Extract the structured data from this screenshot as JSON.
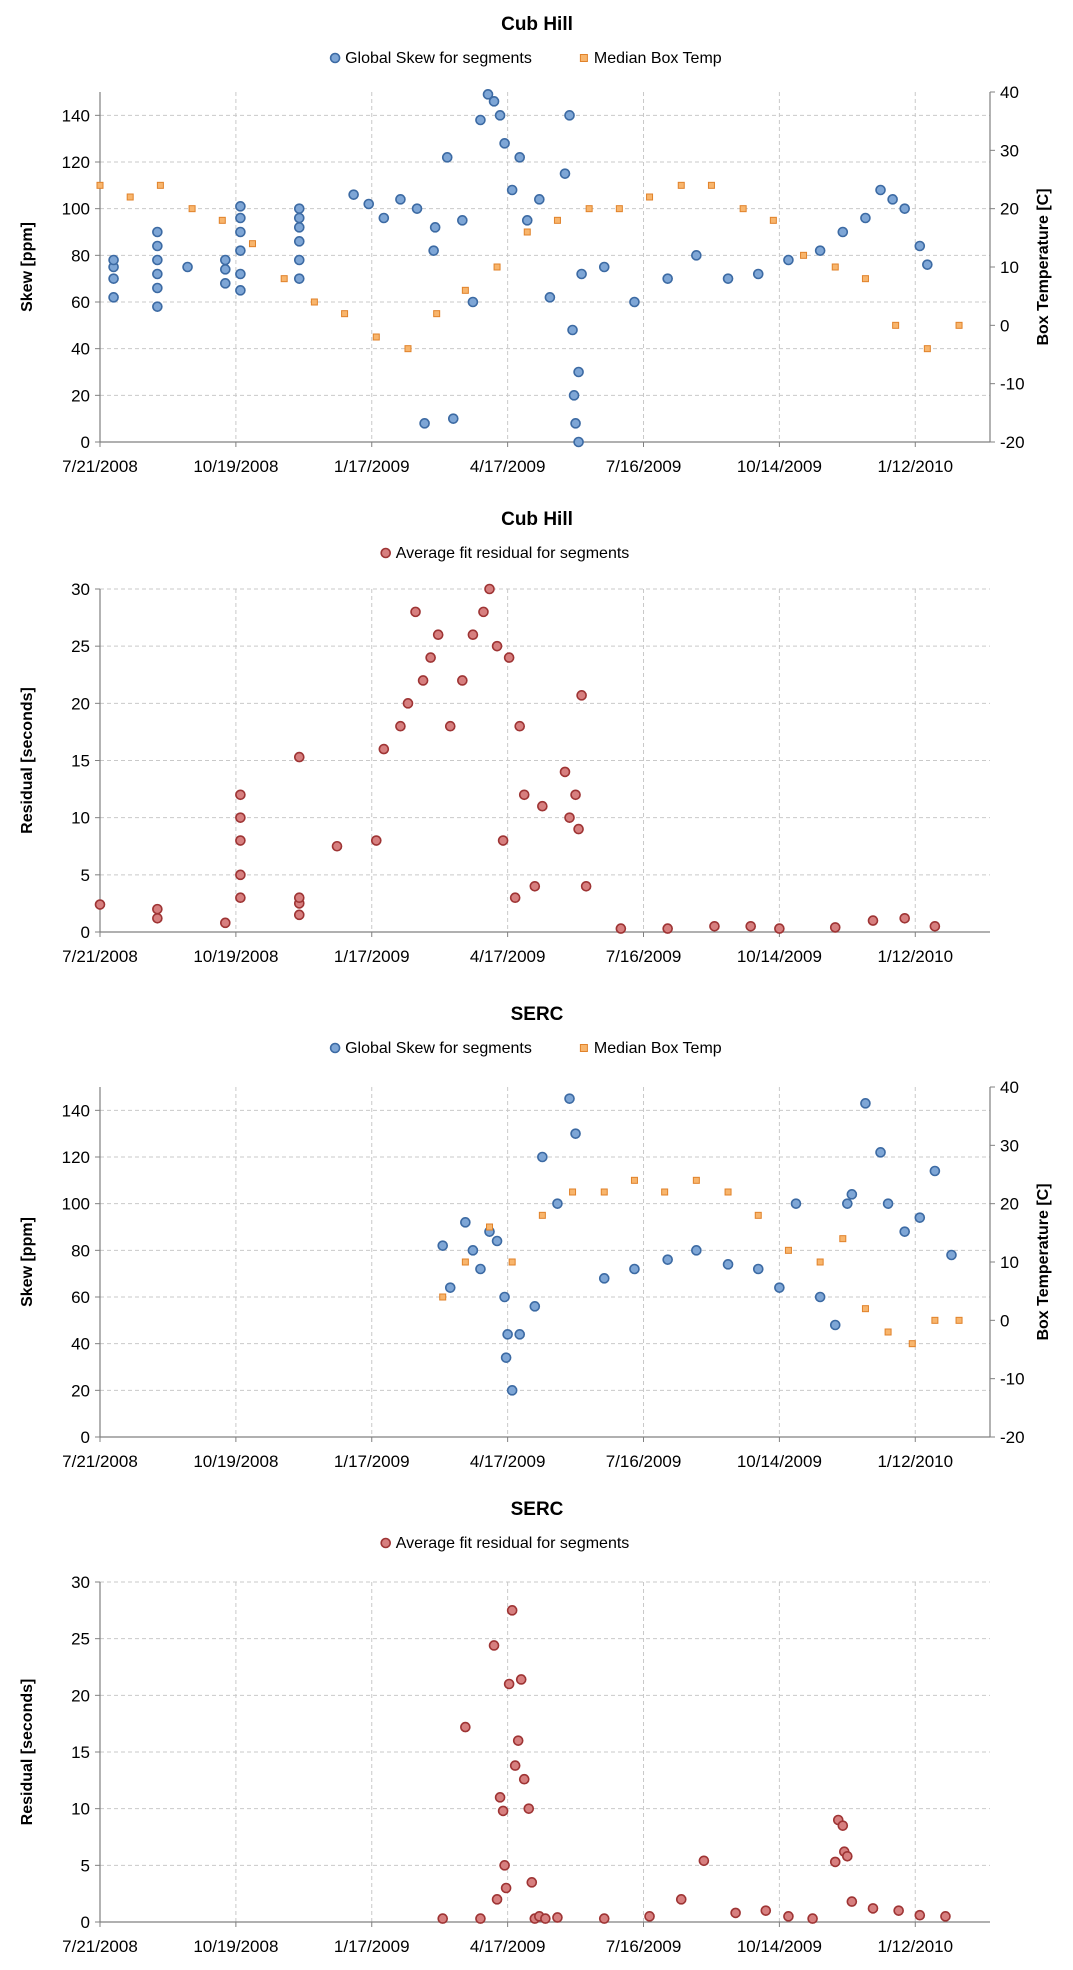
{
  "colors": {
    "skew_fill": "#7ea6d6",
    "skew_stroke": "#3c6aa3",
    "temp_fill": "#f8b56c",
    "temp_stroke": "#e0822a",
    "resid_fill": "#d77f7f",
    "resid_stroke": "#9e3434",
    "grid": "#c9c9c9",
    "axis": "#808080"
  },
  "chart_data": [
    {
      "type": "scatter",
      "title": "Cub Hill",
      "xlabel": "",
      "ylabel": "Skew  [ppm]",
      "y2label": "Box Temperature [C]",
      "ylim": [
        0,
        150
      ],
      "yticks": [
        0,
        20,
        40,
        60,
        80,
        100,
        120,
        140
      ],
      "y2lim": [
        -20,
        40
      ],
      "y2ticks": [
        -20,
        -10,
        0,
        10,
        20,
        30,
        40
      ],
      "x_tick_labels": [
        "7/21/2008",
        "10/19/2008",
        "1/17/2009",
        "4/17/2009",
        "7/16/2009",
        "10/14/2009",
        "1/12/2010"
      ],
      "grid": true,
      "legend_position": "top",
      "series": [
        {
          "name": "Global Skew for segments",
          "axis": "left",
          "marker": "circle",
          "x": [
            "7/30/2008",
            "7/30/2008",
            "7/30/2008",
            "7/30/2008",
            "8/28/2008",
            "8/28/2008",
            "8/28/2008",
            "8/28/2008",
            "8/28/2008",
            "8/28/2008",
            "9/17/2008",
            "10/12/2008",
            "10/12/2008",
            "10/12/2008",
            "10/22/2008",
            "10/22/2008",
            "10/22/2008",
            "10/22/2008",
            "10/22/2008",
            "10/22/2008",
            "11/30/2008",
            "11/30/2008",
            "11/30/2008",
            "11/30/2008",
            "11/30/2008",
            "11/30/2008",
            "1/5/2009",
            "1/15/2009",
            "1/25/2009",
            "2/5/2009",
            "2/16/2009",
            "2/21/2009",
            "2/27/2009",
            "2/28/2009",
            "3/8/2009",
            "3/12/2009",
            "3/18/2009",
            "3/25/2009",
            "3/30/2009",
            "4/4/2009",
            "4/8/2009",
            "4/12/2009",
            "4/15/2009",
            "4/20/2009",
            "4/25/2009",
            "4/30/2009",
            "5/8/2009",
            "5/15/2009",
            "5/25/2009",
            "5/28/2009",
            "5/30/2009",
            "5/31/2009",
            "6/1/2009",
            "6/3/2009",
            "6/3/2009",
            "6/5/2009",
            "6/20/2009",
            "7/10/2009",
            "8/1/2009",
            "8/20/2009",
            "9/10/2009",
            "9/30/2009",
            "10/20/2009",
            "11/10/2009",
            "11/25/2009",
            "12/10/2009",
            "12/20/2009",
            "12/28/2009",
            "1/5/2010",
            "1/15/2010",
            "1/20/2010"
          ],
          "y": [
            62,
            70,
            75,
            78,
            58,
            66,
            72,
            78,
            84,
            90,
            75,
            68,
            78,
            74,
            65,
            72,
            82,
            90,
            96,
            101,
            70,
            78,
            86,
            92,
            96,
            100,
            106,
            102,
            96,
            104,
            100,
            8,
            82,
            92,
            122,
            10,
            95,
            60,
            138,
            149,
            146,
            140,
            128,
            108,
            122,
            95,
            104,
            62,
            115,
            140,
            48,
            20,
            8,
            30,
            0,
            72,
            75,
            60,
            70,
            80,
            70,
            72,
            78,
            82,
            90,
            96,
            108,
            104,
            100,
            84,
            76
          ]
        },
        {
          "name": "Median Box Temp",
          "axis": "right",
          "marker": "square",
          "x": [
            "7/21/2008",
            "8/10/2008",
            "8/30/2008",
            "9/20/2008",
            "10/10/2008",
            "10/30/2008",
            "11/20/2008",
            "12/10/2008",
            "12/30/2008",
            "1/20/2009",
            "2/10/2009",
            "3/1/2009",
            "3/20/2009",
            "4/10/2009",
            "4/30/2009",
            "5/20/2009",
            "6/10/2009",
            "6/30/2009",
            "7/20/2009",
            "8/10/2009",
            "8/30/2009",
            "9/20/2009",
            "10/10/2009",
            "10/30/2009",
            "11/20/2009",
            "12/10/2009",
            "12/30/2009",
            "1/20/2010",
            "2/10/2010"
          ],
          "y": [
            24,
            22,
            24,
            20,
            18,
            14,
            8,
            4,
            2,
            -2,
            -4,
            2,
            6,
            10,
            16,
            18,
            20,
            20,
            22,
            24,
            24,
            20,
            18,
            12,
            10,
            8,
            0,
            -4,
            0
          ]
        }
      ]
    },
    {
      "type": "scatter",
      "title": "Cub Hill",
      "xlabel": "",
      "ylabel": "Residual [seconds]",
      "ylim": [
        0,
        30
      ],
      "yticks": [
        0,
        5,
        10,
        15,
        20,
        25,
        30
      ],
      "x_tick_labels": [
        "7/21/2008",
        "10/19/2008",
        "1/17/2009",
        "4/17/2009",
        "7/16/2009",
        "10/14/2009",
        "1/12/2010"
      ],
      "grid": true,
      "legend_position": "top",
      "series": [
        {
          "name": "Average fit residual for segments",
          "axis": "left",
          "marker": "circle",
          "x": [
            "7/21/2008",
            "8/28/2008",
            "8/28/2008",
            "10/12/2008",
            "10/22/2008",
            "10/22/2008",
            "10/22/2008",
            "10/22/2008",
            "10/22/2008",
            "11/30/2008",
            "11/30/2008",
            "11/30/2008",
            "11/30/2008",
            "12/25/2008",
            "1/20/2009",
            "1/25/2009",
            "2/5/2009",
            "2/10/2009",
            "2/15/2009",
            "2/20/2009",
            "2/25/2009",
            "3/2/2009",
            "3/10/2009",
            "3/18/2009",
            "3/25/2009",
            "4/1/2009",
            "4/5/2009",
            "4/10/2009",
            "4/14/2009",
            "4/18/2009",
            "4/22/2009",
            "4/25/2009",
            "4/28/2009",
            "5/5/2009",
            "5/10/2009",
            "5/25/2009",
            "5/28/2009",
            "6/1/2009",
            "6/3/2009",
            "6/5/2009",
            "6/8/2009",
            "7/1/2009",
            "8/1/2009",
            "9/1/2009",
            "9/25/2009",
            "10/14/2009",
            "11/20/2009",
            "12/15/2009",
            "1/5/2010",
            "1/25/2010"
          ],
          "y": [
            2.4,
            2,
            1.2,
            0.8,
            3,
            5,
            8,
            10,
            12,
            1.5,
            2.5,
            3,
            15.3,
            7.5,
            8,
            16,
            18,
            20,
            28,
            22,
            24,
            26,
            18,
            22,
            26,
            28,
            30,
            25,
            8,
            24,
            3,
            18,
            12,
            4,
            11,
            14,
            10,
            12,
            9,
            20.7,
            4,
            0.3,
            0.3,
            0.5,
            0.5,
            0.3,
            0.4,
            1,
            1.2,
            0.5
          ]
        }
      ]
    },
    {
      "type": "scatter",
      "title": "SERC",
      "xlabel": "",
      "ylabel": "Skew  [ppm]",
      "y2label": "Box Temperature [C]",
      "ylim": [
        0,
        150
      ],
      "yticks": [
        0,
        20,
        40,
        60,
        80,
        100,
        120,
        140
      ],
      "y2lim": [
        -20,
        40
      ],
      "y2ticks": [
        -20,
        -10,
        0,
        10,
        20,
        30,
        40
      ],
      "x_tick_labels": [
        "7/21/2008",
        "10/19/2008",
        "1/17/2009",
        "4/17/2009",
        "7/16/2009",
        "10/14/2009",
        "1/12/2010"
      ],
      "grid": true,
      "legend_position": "top",
      "series": [
        {
          "name": "Global Skew for segments",
          "axis": "left",
          "marker": "circle",
          "x": [
            "3/5/2009",
            "3/10/2009",
            "3/20/2009",
            "3/25/2009",
            "3/30/2009",
            "4/5/2009",
            "4/10/2009",
            "4/15/2009",
            "4/16/2009",
            "4/17/2009",
            "4/20/2009",
            "4/25/2009",
            "5/5/2009",
            "5/10/2009",
            "5/20/2009",
            "5/28/2009",
            "6/1/2009",
            "6/20/2009",
            "7/10/2009",
            "8/1/2009",
            "8/20/2009",
            "9/10/2009",
            "9/30/2009",
            "10/14/2009",
            "10/25/2009",
            "11/10/2009",
            "11/20/2009",
            "11/28/2009",
            "12/1/2009",
            "12/10/2009",
            "12/20/2009",
            "12/25/2009",
            "1/5/2010",
            "1/15/2010",
            "1/25/2010",
            "2/5/2010"
          ],
          "y": [
            82,
            64,
            92,
            80,
            72,
            88,
            84,
            60,
            34,
            44,
            20,
            44,
            56,
            120,
            100,
            145,
            130,
            68,
            72,
            76,
            80,
            74,
            72,
            64,
            100,
            60,
            48,
            100,
            104,
            143,
            122,
            100,
            88,
            94,
            114,
            78
          ]
        },
        {
          "name": "Median Box Temp",
          "axis": "right",
          "marker": "square",
          "x": [
            "3/5/2009",
            "3/20/2009",
            "4/5/2009",
            "4/20/2009",
            "5/10/2009",
            "5/30/2009",
            "6/20/2009",
            "7/10/2009",
            "7/30/2009",
            "8/20/2009",
            "9/10/2009",
            "9/30/2009",
            "10/20/2009",
            "11/10/2009",
            "11/25/2009",
            "12/10/2009",
            "12/25/2009",
            "1/10/2010",
            "1/25/2010",
            "2/10/2010"
          ],
          "y": [
            4,
            10,
            16,
            10,
            18,
            22,
            22,
            24,
            22,
            24,
            22,
            18,
            12,
            10,
            14,
            2,
            -2,
            -4,
            0,
            0
          ]
        }
      ]
    },
    {
      "type": "scatter",
      "title": "SERC",
      "xlabel": "",
      "ylabel": "Residual [seconds]",
      "ylim": [
        0,
        30
      ],
      "yticks": [
        0,
        5,
        10,
        15,
        20,
        25,
        30
      ],
      "x_tick_labels": [
        "7/21/2008",
        "10/19/2008",
        "1/17/2009",
        "4/17/2009",
        "7/16/2009",
        "10/14/2009",
        "1/12/2010"
      ],
      "grid": true,
      "legend_position": "top",
      "series": [
        {
          "name": "Average fit residual for segments",
          "axis": "left",
          "marker": "circle",
          "x": [
            "3/5/2009",
            "3/20/2009",
            "3/30/2009",
            "4/8/2009",
            "4/10/2009",
            "4/12/2009",
            "4/14/2009",
            "4/15/2009",
            "4/16/2009",
            "4/18/2009",
            "4/20/2009",
            "4/22/2009",
            "4/24/2009",
            "4/26/2009",
            "4/28/2009",
            "5/1/2009",
            "5/3/2009",
            "5/5/2009",
            "5/8/2009",
            "5/12/2009",
            "5/20/2009",
            "6/20/2009",
            "7/20/2009",
            "8/10/2009",
            "8/25/2009",
            "9/15/2009",
            "10/5/2009",
            "10/20/2009",
            "11/5/2009",
            "11/20/2009",
            "11/22/2009",
            "11/25/2009",
            "11/26/2009",
            "11/28/2009",
            "12/1/2009",
            "12/15/2009",
            "1/1/2010",
            "1/15/2010",
            "2/1/2010"
          ],
          "y": [
            0.3,
            17.2,
            0.3,
            24.4,
            2,
            11,
            9.8,
            5,
            3,
            21,
            27.5,
            13.8,
            16,
            21.4,
            12.6,
            10,
            3.5,
            0.3,
            0.5,
            0.3,
            0.4,
            0.3,
            0.5,
            2,
            5.4,
            0.8,
            1,
            0.5,
            0.3,
            5.3,
            9,
            8.5,
            6.2,
            5.8,
            1.8,
            1.2,
            1,
            0.6,
            0.5
          ]
        }
      ]
    }
  ]
}
